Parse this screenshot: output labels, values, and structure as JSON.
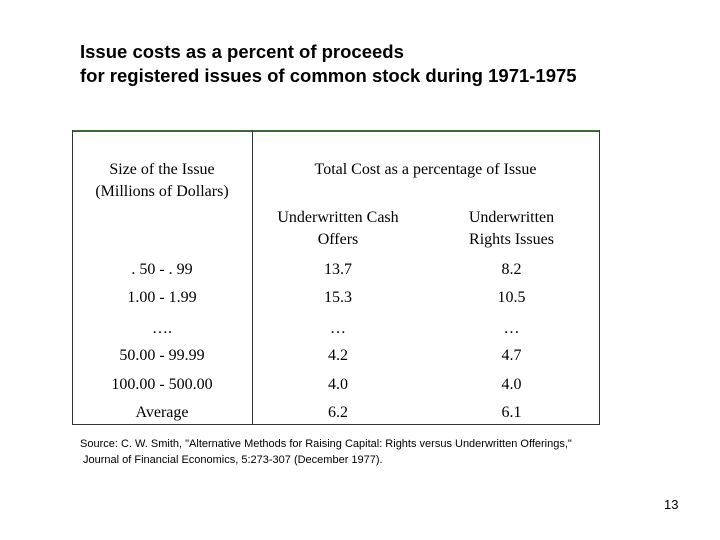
{
  "title": {
    "line1": "Issue costs as a percent of proceeds",
    "line2": "for registered issues of common stock during 1971-1975"
  },
  "table": {
    "header": {
      "size_col_line1": "Size of the Issue",
      "size_col_line2": "(Millions of Dollars)",
      "total_cost": "Total Cost as a percentage of Issue",
      "cash_line1": "Underwritten Cash",
      "cash_line2": "Offers",
      "rights_line1": "Underwritten",
      "rights_line2": "Rights Issues"
    },
    "rows": [
      {
        "size": ". 50 - . 99",
        "cash": "13.7",
        "rights": "8.2"
      },
      {
        "size": "1.00 - 1.99",
        "cash": "15.3",
        "rights": "10.5"
      },
      {
        "size": "….",
        "cash": "…",
        "rights": "…"
      },
      {
        "size": "50.00 - 99.99",
        "cash": "4.2",
        "rights": "4.7"
      },
      {
        "size": "100.00 - 500.00",
        "cash": "4.0",
        "rights": "4.0"
      },
      {
        "size": "Average",
        "cash": "6.2",
        "rights": "6.1"
      }
    ]
  },
  "source": {
    "line1": "Source: C. W. Smith, \"Alternative Methods for Raising Capital: Rights versus Underwritten Offerings,\"",
    "line2": "Journal of Financial Economics, 5:273-307 (December 1977)."
  },
  "page_number": "13"
}
